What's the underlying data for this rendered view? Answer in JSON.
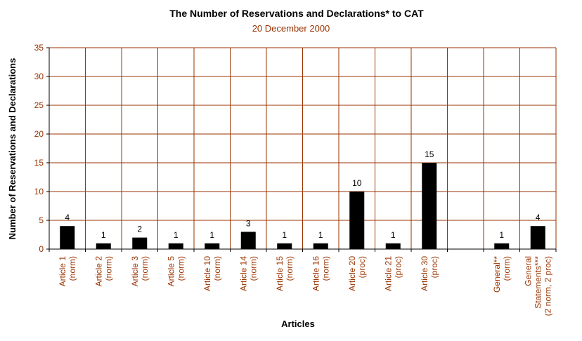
{
  "chart_data": {
    "type": "bar",
    "title": "The Number of Reservations and Declarations* to CAT",
    "subtitle": "20 December 2000",
    "xlabel": "Articles",
    "ylabel": "Number of Reservations and Declarations",
    "ylim": [
      0,
      35
    ],
    "yticks": [
      0,
      5,
      10,
      15,
      20,
      25,
      30,
      35
    ],
    "grid": true,
    "categories": [
      [
        "Article 1",
        "(norm)"
      ],
      [
        "Article 2",
        "(norm)"
      ],
      [
        "Article 3",
        "(norm)"
      ],
      [
        "Article 5",
        "(norm)"
      ],
      [
        "Article 10",
        "(norm)"
      ],
      [
        "Article 14",
        "(norm)"
      ],
      [
        "Article 15",
        "(norm)"
      ],
      [
        "Article 16",
        "(norm)"
      ],
      [
        "Article 20",
        "(proc)"
      ],
      [
        "Article 21",
        "(proc)"
      ],
      [
        "Article 30",
        "(proc)"
      ],
      [],
      [
        "General**",
        "(norm)"
      ],
      [
        "General",
        "Statements***",
        "(2 norm, 2 proc)"
      ]
    ],
    "values": [
      4,
      1,
      2,
      1,
      1,
      3,
      1,
      1,
      10,
      1,
      15,
      null,
      1,
      4
    ],
    "colors": {
      "bar": "#000000",
      "grid": "#993300",
      "tick_text": "#993300"
    }
  }
}
